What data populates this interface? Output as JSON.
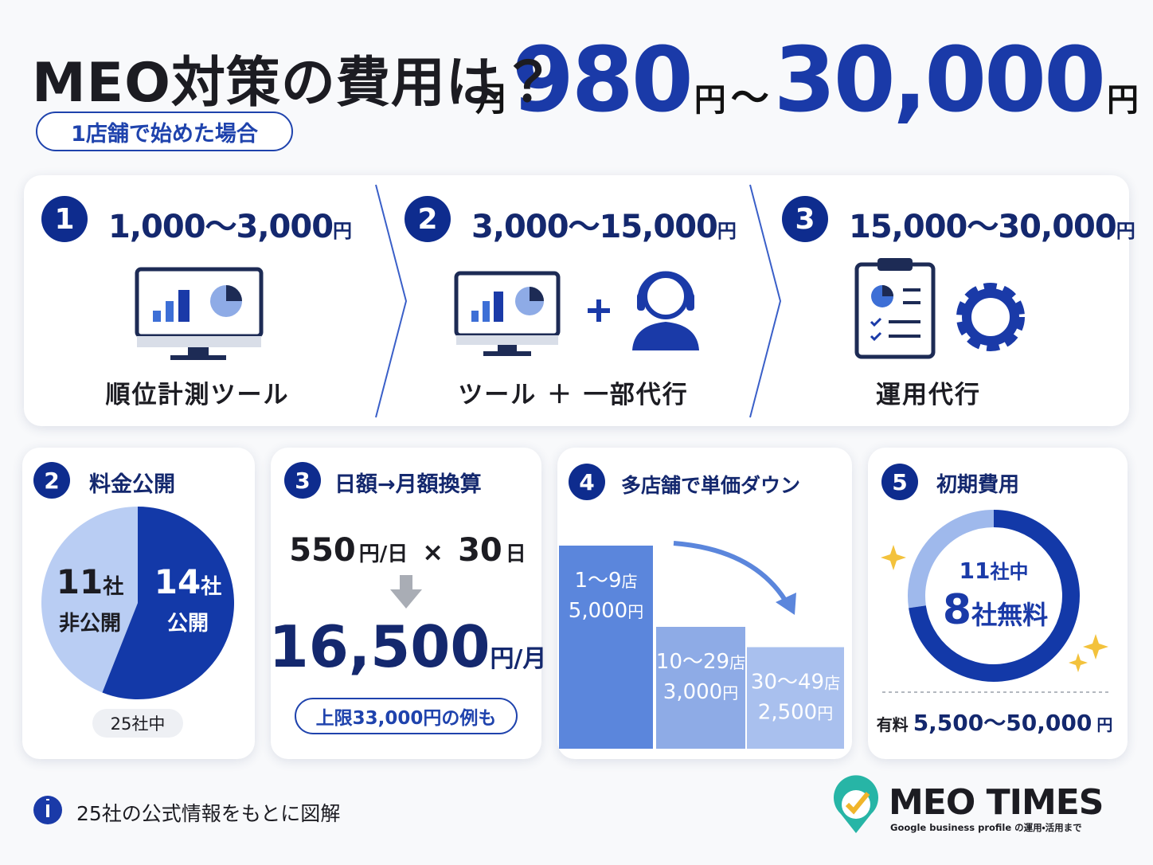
{
  "header": {
    "title": "MEO対策の費用は？",
    "badge": "1店舗で始めた場合",
    "price": {
      "prefix": "月",
      "min": "980",
      "min_unit": "円",
      "sep": "〜",
      "max": "30,000",
      "max_unit": "円"
    }
  },
  "steps": [
    {
      "number": "1",
      "range": "1,000〜3,000",
      "unit": "円",
      "label": "順位計測ツール"
    },
    {
      "number": "2",
      "range": "3,000〜15,000",
      "unit": "円",
      "label": "ツール ＋ 一部代行"
    },
    {
      "number": "3",
      "range": "15,000〜30,000",
      "unit": "円",
      "label": "運用代行"
    }
  ],
  "price_disclosure": {
    "number": "2",
    "title": "料金公開",
    "slices": [
      {
        "count": 11,
        "unit": "社",
        "label": "非公開"
      },
      {
        "count": 14,
        "unit": "社",
        "label": "公開"
      }
    ],
    "total": "25社中"
  },
  "conversion": {
    "number": "3",
    "title": "日額→月額換算",
    "daily": "550",
    "daily_unit": "円/日",
    "times": "×",
    "days": "30",
    "days_unit": "日",
    "monthly": "16,500",
    "monthly_unit": "円/月",
    "note": "上限33,000円の例も"
  },
  "multi_store": {
    "number": "4",
    "title": "多店舗で単価ダウン",
    "bars": [
      {
        "stores": "1〜9",
        "stores_unit": "店",
        "price": {
          "value": 5000,
          "label": "5,000"
        },
        "unit": "円"
      },
      {
        "stores": "10〜29",
        "stores_unit": "店",
        "price": {
          "value": 3000,
          "label": "3,000"
        },
        "unit": "円"
      },
      {
        "stores": "30〜49",
        "stores_unit": "店",
        "price": {
          "value": 2500,
          "label": "2,500"
        },
        "unit": "円"
      }
    ]
  },
  "initial_cost": {
    "number": "5",
    "title": "初期費用",
    "total": 11,
    "total_unit": "社中",
    "free": 8,
    "free_unit": "社無料",
    "paid_label": "有料",
    "paid_range": "5,500〜50,000",
    "paid_unit": "円"
  },
  "footer": {
    "note": "25社の公式情報をもとに図解",
    "logo": "MEO TIMES",
    "logo_sub": "Google business profile の運用・活用まで"
  }
}
